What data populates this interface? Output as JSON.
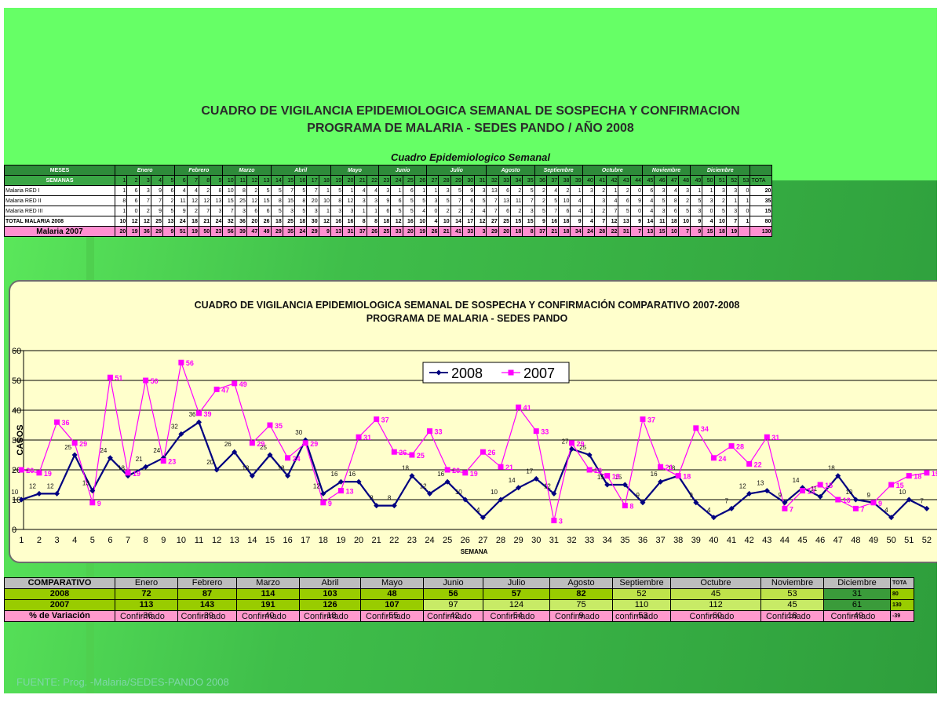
{
  "title_line1": "CUADRO DE VIGILANCIA EPIDEMIOLOGICA SEMANAL DE SOSPECHA Y CONFIRMACION",
  "title_line2": "PROGRAMA DE MALARIA - SEDES PANDO / AÑO 2008",
  "table_title": "Cuadro Epidemiologico Semanal",
  "weekly_table": {
    "months_label": "MESES",
    "weeks_label": "SEMANAS",
    "total_label": "TOTA",
    "months": [
      {
        "name": "Enero",
        "weeks": 5
      },
      {
        "name": "Febrero",
        "weeks": 4
      },
      {
        "name": "Marzo",
        "weeks": 4
      },
      {
        "name": "Abril",
        "weeks": 5
      },
      {
        "name": "Mayo",
        "weeks": 4
      },
      {
        "name": "Junio",
        "weeks": 4
      },
      {
        "name": "Julio",
        "weeks": 5
      },
      {
        "name": "Agosto",
        "weeks": 4
      },
      {
        "name": "Septiembre",
        "weeks": 4
      },
      {
        "name": "Octubre",
        "weeks": 5
      },
      {
        "name": "Noviembre",
        "weeks": 4
      },
      {
        "name": "Diciembre",
        "weeks": 5
      }
    ],
    "week_numbers": [
      "1",
      "2",
      "3",
      "4",
      "5",
      "6",
      "7",
      "8",
      "9",
      "10",
      "11",
      "12",
      "13",
      "14",
      "15",
      "16",
      "17",
      "18",
      "19",
      "20",
      "21",
      "22",
      "23",
      "24",
      "25",
      "26",
      "27",
      "28",
      "29",
      "30",
      "31",
      "32",
      "33",
      "34",
      "35",
      "36",
      "37",
      "38",
      "39",
      "40",
      "41",
      "42",
      "43",
      "44",
      "45",
      "46",
      "47",
      "48",
      "49",
      "50",
      "51",
      "52",
      "53"
    ],
    "rows": [
      {
        "label": "Malaria RED I",
        "kind": "dat",
        "total": "20",
        "values": [
          "1",
          "6",
          "3",
          "9",
          "6",
          "4",
          "4",
          "2",
          "8",
          "10",
          "8",
          "2",
          "5",
          "5",
          "7",
          "5",
          "7",
          "1",
          "5",
          "1",
          "4",
          "4",
          "3",
          "1",
          "6",
          "1",
          "1",
          "3",
          "5",
          "9",
          "3",
          "13",
          "6",
          "2",
          "5",
          "2",
          "4",
          "2",
          "1",
          "3",
          "2",
          "1",
          "2",
          "0",
          "6",
          "3",
          "4",
          "3",
          "1",
          "1",
          "3",
          "3",
          "0"
        ]
      },
      {
        "label": "Malaria RED II",
        "kind": "dat",
        "total": "35",
        "values": [
          "8",
          "6",
          "7",
          "7",
          "2",
          "11",
          "12",
          "12",
          "13",
          "15",
          "25",
          "12",
          "15",
          "8",
          "15",
          "8",
          "20",
          "10",
          "8",
          "12",
          "3",
          "3",
          "9",
          "6",
          "5",
          "5",
          "3",
          "5",
          "7",
          "6",
          "5",
          "7",
          "13",
          "11",
          "7",
          "2",
          "5",
          "10",
          "4",
          "",
          "3",
          "4",
          "6",
          "9",
          "4",
          "5",
          "8",
          "2",
          "5",
          "3",
          "2",
          "1",
          "1"
        ]
      },
      {
        "label": "Malaria RED III",
        "kind": "dat",
        "total": "15",
        "values": [
          "1",
          "0",
          "2",
          "9",
          "5",
          "9",
          "2",
          "7",
          "3",
          "7",
          "3",
          "6",
          "6",
          "5",
          "3",
          "5",
          "3",
          "1",
          "3",
          "3",
          "1",
          "1",
          "6",
          "5",
          "5",
          "4",
          "0",
          "2",
          "2",
          "2",
          "4",
          "7",
          "6",
          "2",
          "3",
          "5",
          "7",
          "6",
          "4",
          "1",
          "2",
          "7",
          "5",
          "0",
          "4",
          "3",
          "6",
          "5",
          "3",
          "0",
          "5",
          "3",
          "0"
        ]
      },
      {
        "label": "TOTAL MALARIA 2008",
        "kind": "tot",
        "total": "80",
        "values": [
          "10",
          "12",
          "12",
          "25",
          "13",
          "24",
          "18",
          "21",
          "24",
          "32",
          "36",
          "20",
          "26",
          "18",
          "25",
          "18",
          "30",
          "12",
          "16",
          "16",
          "8",
          "8",
          "18",
          "12",
          "16",
          "10",
          "4",
          "10",
          "14",
          "17",
          "12",
          "27",
          "25",
          "15",
          "15",
          "9",
          "16",
          "18",
          "9",
          "4",
          "7",
          "12",
          "13",
          "9",
          "14",
          "11",
          "18",
          "10",
          "9",
          "4",
          "10",
          "7",
          "1"
        ]
      },
      {
        "label": "Malaria 2007",
        "kind": "m07",
        "total": "130",
        "values": [
          "20",
          "19",
          "36",
          "29",
          "9",
          "51",
          "19",
          "50",
          "23",
          "56",
          "39",
          "47",
          "49",
          "29",
          "35",
          "24",
          "29",
          "9",
          "13",
          "31",
          "37",
          "26",
          "25",
          "33",
          "20",
          "19",
          "26",
          "21",
          "41",
          "33",
          "3",
          "29",
          "20",
          "18",
          "8",
          "37",
          "21",
          "18",
          "34",
          "24",
          "28",
          "22",
          "31",
          "7",
          "13",
          "15",
          "10",
          "7",
          "9",
          "15",
          "18",
          "19",
          ""
        ]
      }
    ]
  },
  "chart_data": {
    "type": "line",
    "title": "CUADRO DE VIGILANCIA EPIDEMIOLOGICA SEMANAL DE SOSPECHA Y CONFIRMACIÓN COMPARATIVO 2007-2008",
    "subtitle": "PROGRAMA DE MALARIA - SEDES PANDO",
    "xlabel": "SEMANA",
    "ylabel": "CASOS",
    "ylim": [
      0,
      60
    ],
    "yticks": [
      0,
      10,
      20,
      30,
      40,
      50,
      60
    ],
    "grid": true,
    "legend_position": "top-right",
    "x": [
      1,
      2,
      3,
      4,
      5,
      6,
      7,
      8,
      9,
      10,
      11,
      12,
      13,
      14,
      15,
      16,
      17,
      18,
      19,
      20,
      21,
      22,
      23,
      24,
      25,
      26,
      27,
      28,
      29,
      30,
      31,
      32,
      33,
      34,
      35,
      36,
      37,
      38,
      39,
      40,
      41,
      42,
      43,
      44,
      45,
      46,
      47,
      48,
      49,
      50,
      51,
      52
    ],
    "series": [
      {
        "name": "2008",
        "color": "#000080",
        "marker": "diamond",
        "values": [
          10,
          12,
          12,
          25,
          13,
          24,
          18,
          21,
          24,
          32,
          36,
          20,
          26,
          18,
          25,
          18,
          30,
          12,
          16,
          16,
          8,
          8,
          18,
          12,
          16,
          10,
          4,
          10,
          14,
          17,
          12,
          27,
          25,
          15,
          15,
          9,
          16,
          18,
          9,
          4,
          7,
          12,
          13,
          9,
          14,
          11,
          18,
          10,
          9,
          4,
          10,
          7
        ]
      },
      {
        "name": "2007",
        "color": "#ff00ff",
        "marker": "square",
        "values": [
          20,
          19,
          36,
          29,
          9,
          51,
          19,
          50,
          23,
          56,
          39,
          47,
          49,
          29,
          35,
          24,
          29,
          9,
          13,
          31,
          37,
          26,
          25,
          33,
          20,
          19,
          26,
          21,
          41,
          33,
          3,
          29,
          20,
          18,
          8,
          37,
          21,
          18,
          34,
          24,
          28,
          22,
          31,
          7,
          13,
          15,
          10,
          7,
          9,
          15,
          18,
          19
        ]
      }
    ]
  },
  "comparison_table": {
    "header_label": "COMPARATIVO",
    "total_label": "TOTA",
    "months": [
      "Enero",
      "Febrero",
      "Marzo",
      "Abril",
      "Mayo",
      "Junio",
      "Julio",
      "Agosto",
      "Septiembre",
      "Octubre",
      "Noviembre",
      "Diciembre"
    ],
    "rows": [
      {
        "label": "2008",
        "values": [
          "72",
          "87",
          "114",
          "103",
          "48",
          "56",
          "57",
          "82",
          "52",
          "45",
          "53",
          "31"
        ],
        "total": "80"
      },
      {
        "label": "2007",
        "values": [
          "113",
          "143",
          "191",
          "126",
          "107",
          "97",
          "124",
          "75",
          "110",
          "112",
          "45",
          "61"
        ],
        "total": "130"
      },
      {
        "label": "% de Variación",
        "values": [
          "-36",
          "-39",
          "-40",
          "-18",
          "-55",
          "-42",
          "-54",
          "9",
          "-53",
          "-60",
          "18",
          "-49"
        ],
        "total": "-39"
      }
    ],
    "confirmations": [
      {
        "month_index": 0,
        "text": "Confirmado"
      },
      {
        "month_index": 1,
        "text": "Confirmado"
      },
      {
        "month_index": 2,
        "text": "Confirmado"
      },
      {
        "month_index": 3,
        "text": "Confirmado"
      },
      {
        "month_index": 4,
        "text": "Confirmado"
      },
      {
        "month_index": 5,
        "text": "Confirmado"
      },
      {
        "month_index": 6,
        "text": "Confirmado"
      },
      {
        "month_index": 7,
        "text": "Confirmado"
      },
      {
        "month_index": 8,
        "text": "confirmado"
      },
      {
        "month_index": 9,
        "text": "Confirmado"
      },
      {
        "month_index": 10,
        "text": "Confirmado"
      },
      {
        "month_index": 11,
        "text": "Confirmado"
      }
    ]
  },
  "source": "FUENTE: Prog. -Malaria/SEDES-PANDO 2008"
}
